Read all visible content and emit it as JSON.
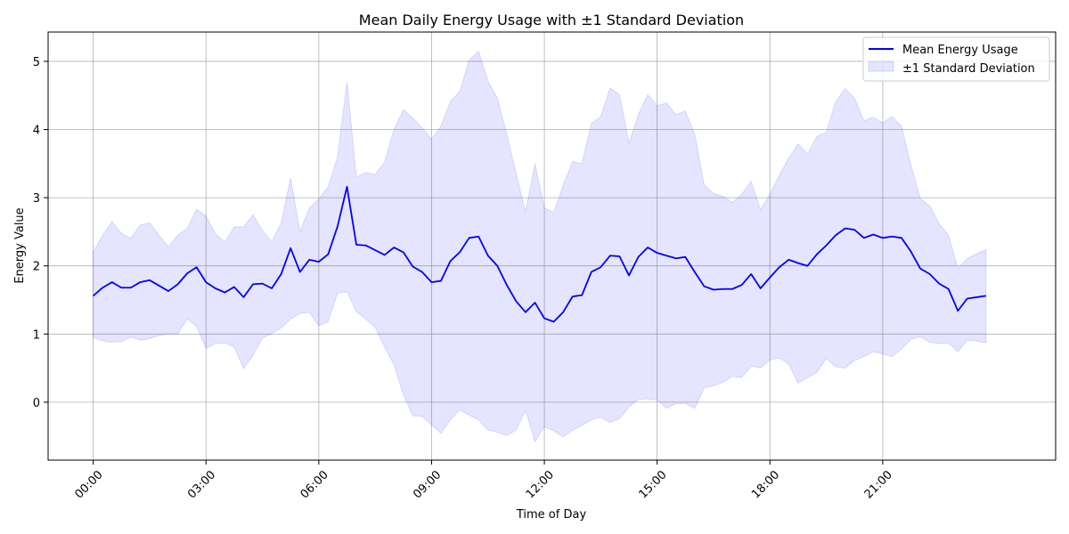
{
  "chart_data": {
    "type": "line",
    "title": "Mean Daily Energy Usage with ±1 Standard Deviation",
    "xlabel": "Time of Day",
    "ylabel": "Energy Value",
    "x_ticks": [
      "00:00",
      "03:00",
      "06:00",
      "09:00",
      "12:00",
      "15:00",
      "18:00",
      "21:00"
    ],
    "x_tick_hours": [
      0,
      3,
      6,
      9,
      12,
      15,
      18,
      21
    ],
    "xlim_hours": [
      -1.2,
      25.6
    ],
    "y_ticks": [
      "0",
      "1",
      "2",
      "3",
      "4",
      "5"
    ],
    "y_tick_values": [
      0,
      1,
      2,
      3,
      4,
      5
    ],
    "ylim": [
      -0.85,
      5.43
    ],
    "grid": true,
    "legend_position": "top-right",
    "sample_interval_minutes": 15,
    "series": [
      {
        "name": "Mean Energy Usage",
        "kind": "line",
        "color": "#0000ff",
        "values": [
          1.56,
          1.68,
          1.76,
          1.68,
          1.68,
          1.76,
          1.79,
          1.71,
          1.63,
          1.73,
          1.89,
          1.98,
          1.76,
          1.67,
          1.61,
          1.69,
          1.54,
          1.73,
          1.74,
          1.67,
          1.88,
          2.26,
          1.91,
          2.09,
          2.06,
          2.17,
          2.58,
          3.16,
          2.31,
          2.3,
          2.23,
          2.16,
          2.27,
          2.2,
          1.99,
          1.91,
          1.76,
          1.78,
          2.07,
          2.2,
          2.41,
          2.43,
          2.15,
          2.0,
          1.72,
          1.48,
          1.32,
          1.46,
          1.23,
          1.18,
          1.32,
          1.55,
          1.57,
          1.91,
          1.98,
          2.15,
          2.14,
          1.86,
          2.13,
          2.27,
          2.19,
          2.15,
          2.11,
          2.13,
          1.91,
          1.7,
          1.65,
          1.66,
          1.66,
          1.72,
          1.88,
          1.67,
          1.83,
          1.98,
          2.09,
          2.04,
          2.0,
          2.17,
          2.3,
          2.45,
          2.55,
          2.53,
          2.41,
          2.46,
          2.41,
          2.43,
          2.41,
          2.21,
          1.96,
          1.88,
          1.74,
          1.66,
          1.34,
          1.52,
          1.54,
          1.56
        ]
      },
      {
        "name": "±1 Standard Deviation",
        "kind": "band",
        "color": "#0000ff",
        "upper": [
          2.2,
          2.45,
          2.65,
          2.48,
          2.4,
          2.6,
          2.63,
          2.45,
          2.28,
          2.45,
          2.55,
          2.83,
          2.73,
          2.47,
          2.35,
          2.57,
          2.57,
          2.75,
          2.52,
          2.35,
          2.63,
          3.29,
          2.5,
          2.85,
          2.98,
          3.16,
          3.6,
          4.7,
          3.3,
          3.37,
          3.34,
          3.52,
          4.0,
          4.29,
          4.17,
          4.02,
          3.86,
          4.05,
          4.41,
          4.56,
          5.02,
          5.15,
          4.71,
          4.46,
          3.93,
          3.35,
          2.79,
          3.5,
          2.85,
          2.78,
          3.18,
          3.53,
          3.5,
          4.09,
          4.19,
          4.61,
          4.51,
          3.8,
          4.22,
          4.51,
          4.35,
          4.39,
          4.22,
          4.27,
          3.93,
          3.19,
          3.06,
          3.02,
          2.93,
          3.05,
          3.24,
          2.82,
          3.05,
          3.33,
          3.58,
          3.79,
          3.64,
          3.9,
          3.96,
          4.41,
          4.6,
          4.46,
          4.13,
          4.18,
          4.1,
          4.19,
          4.05,
          3.48,
          2.99,
          2.88,
          2.62,
          2.45,
          1.96,
          2.11,
          2.18,
          2.24
        ],
        "lower": [
          0.95,
          0.9,
          0.88,
          0.89,
          0.96,
          0.91,
          0.93,
          0.98,
          1.0,
          1.0,
          1.22,
          1.11,
          0.79,
          0.86,
          0.87,
          0.81,
          0.49,
          0.69,
          0.94,
          1.01,
          1.09,
          1.22,
          1.3,
          1.32,
          1.12,
          1.18,
          1.6,
          1.62,
          1.33,
          1.22,
          1.1,
          0.81,
          0.55,
          0.11,
          -0.2,
          -0.21,
          -0.33,
          -0.46,
          -0.26,
          -0.11,
          -0.19,
          -0.26,
          -0.41,
          -0.44,
          -0.49,
          -0.41,
          -0.12,
          -0.58,
          -0.36,
          -0.42,
          -0.51,
          -0.41,
          -0.34,
          -0.26,
          -0.22,
          -0.3,
          -0.24,
          -0.07,
          0.04,
          0.05,
          0.03,
          -0.09,
          -0.02,
          -0.02,
          -0.09,
          0.21,
          0.24,
          0.29,
          0.38,
          0.36,
          0.53,
          0.5,
          0.62,
          0.65,
          0.56,
          0.28,
          0.36,
          0.44,
          0.64,
          0.52,
          0.5,
          0.61,
          0.67,
          0.74,
          0.71,
          0.67,
          0.78,
          0.92,
          0.96,
          0.88,
          0.86,
          0.87,
          0.74,
          0.91,
          0.9,
          0.87
        ]
      }
    ]
  }
}
